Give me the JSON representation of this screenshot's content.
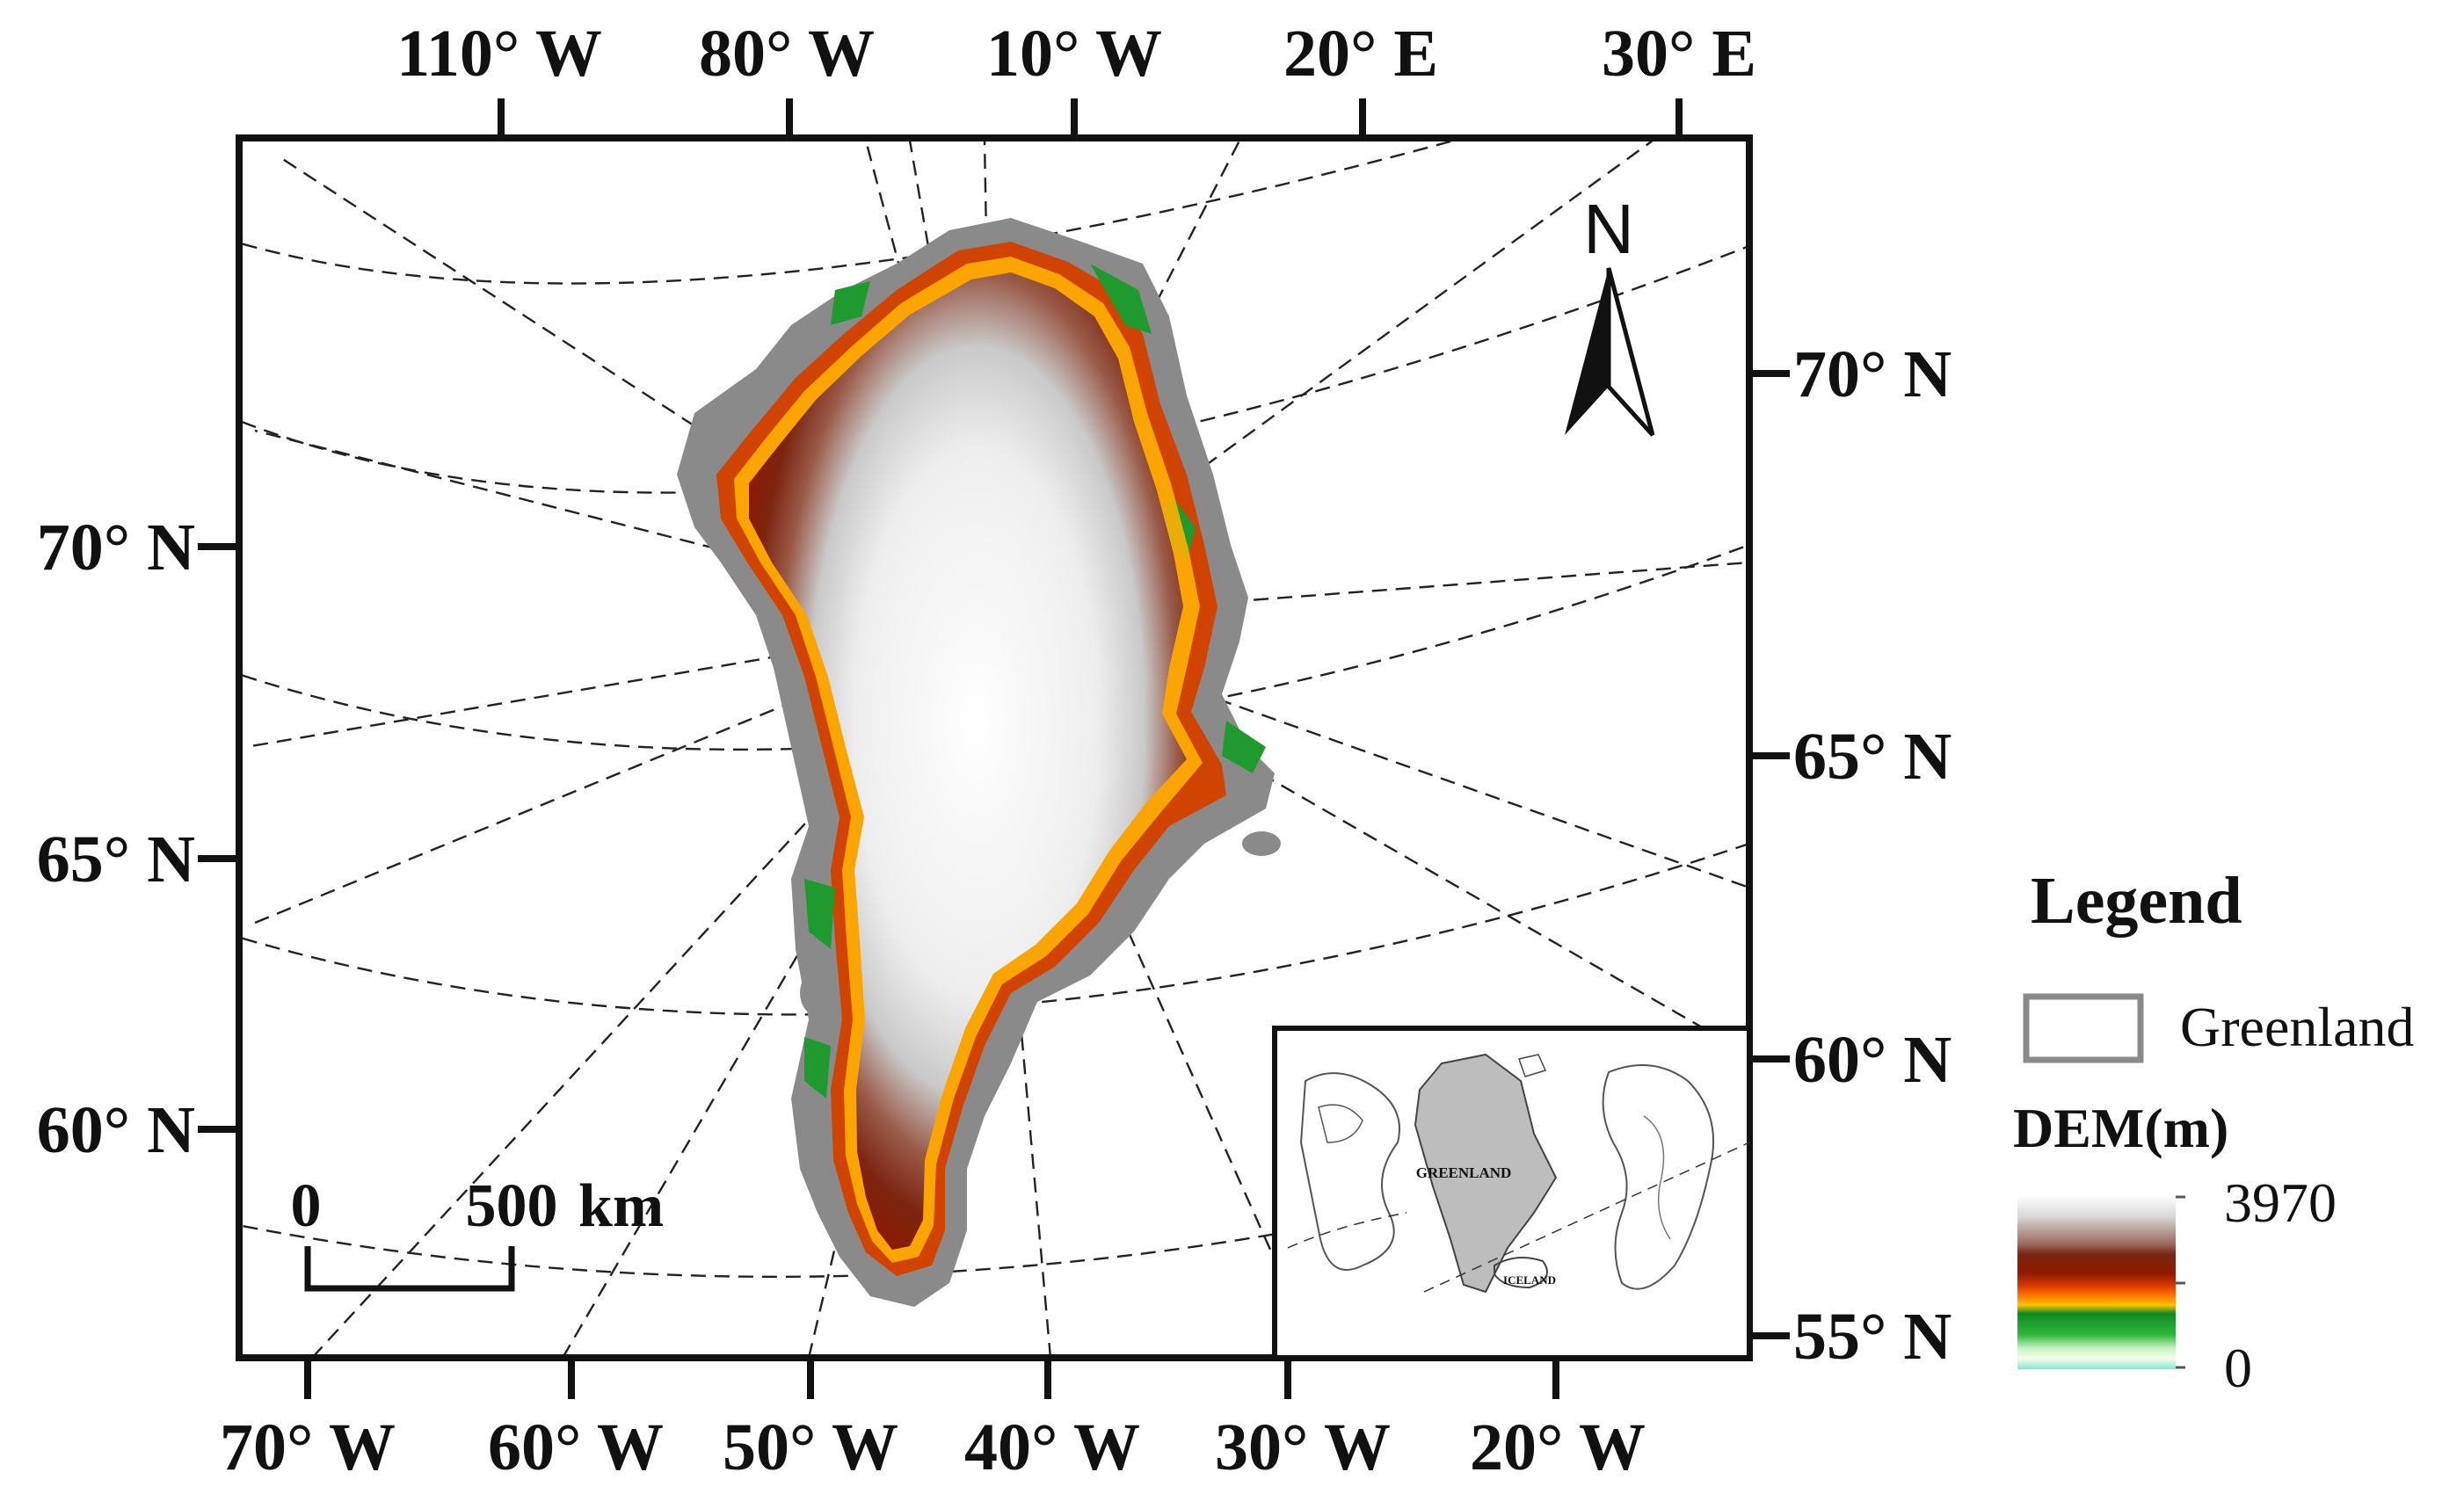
{
  "map": {
    "top_labels": [
      "110° W",
      "80° W",
      "10° W",
      "20° E",
      "30° E"
    ],
    "bottom_labels": [
      "70° W",
      "60° W",
      "50° W",
      "40° W",
      "30° W",
      "20° W"
    ],
    "left_labels": [
      "70° N",
      "65° N",
      "60° N"
    ],
    "right_labels": [
      "70° N",
      "65° N",
      "60° N",
      "55° N"
    ],
    "north_arrow_label": "N"
  },
  "scale_bar": {
    "start_label": "0",
    "end_label": "500",
    "unit": "km"
  },
  "inset": {
    "label_greenland": "GREENLAND",
    "label_iceland": "ICELAND"
  },
  "legend": {
    "title": "Legend",
    "boundary_label": "Greenland",
    "dem_title": "DEM(m)",
    "dem_max": "3970",
    "dem_min": "0",
    "dem_colors": [
      "#ffffff",
      "#cfcfcf",
      "#7a2410",
      "#8e1a00",
      "#d83a00",
      "#ffb000",
      "#118a22",
      "#2fb53b",
      "#c8f2c6",
      "#7fe7d6"
    ]
  },
  "colors": {
    "frame": "#111111",
    "land_halo": "#8a8a8a",
    "inset_land": "#bdbdbd"
  }
}
